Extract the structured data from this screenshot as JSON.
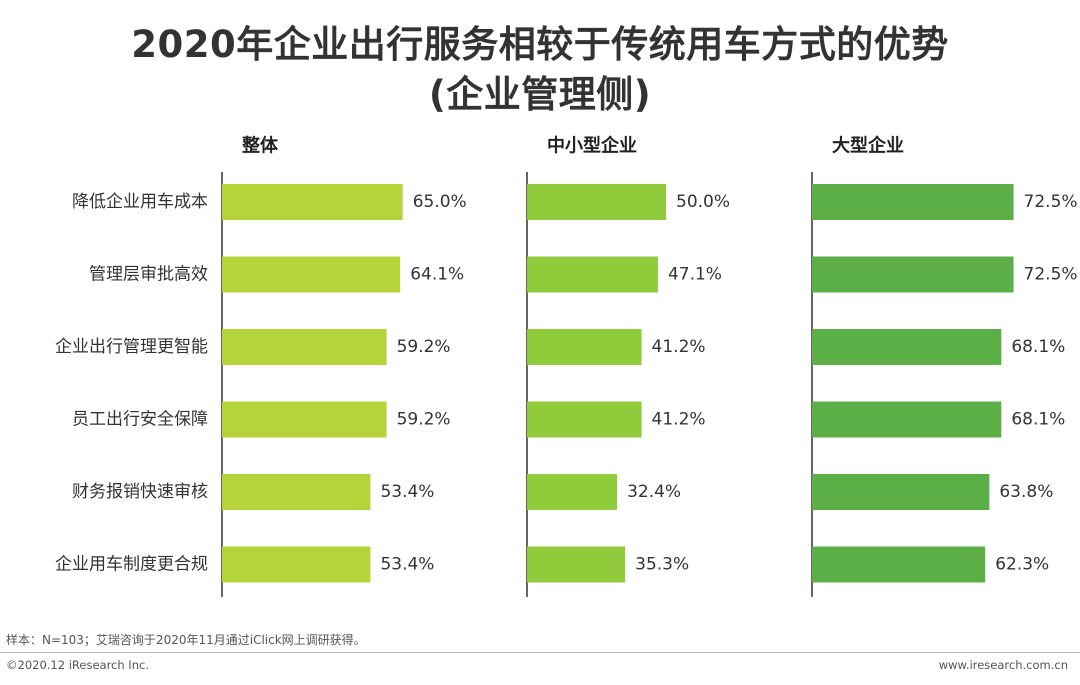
{
  "title": {
    "line1": "2020年企业出行服务相较于传统用车方式的优势",
    "line2": "(企业管理侧)"
  },
  "chart_data": {
    "type": "bar",
    "orientation": "horizontal",
    "categories": [
      "降低企业用车成本",
      "管理层审批高效",
      "企业出行管理更智能",
      "员工出行安全保障",
      "财务报销快速审核",
      "企业用车制度更合规"
    ],
    "value_suffix": "%",
    "panels": [
      {
        "name": "整体",
        "color": "#b5d43a",
        "values": [
          65.0,
          64.1,
          59.2,
          59.2,
          53.4,
          53.4
        ]
      },
      {
        "name": "中小型企业",
        "color": "#8fcb3b",
        "values": [
          50.0,
          47.1,
          41.2,
          41.2,
          32.4,
          35.3
        ]
      },
      {
        "name": "大型企业",
        "color": "#5cae47",
        "values": [
          72.5,
          72.5,
          68.1,
          68.1,
          63.8,
          62.3
        ]
      }
    ]
  },
  "note": "样本：N=103；艾瑞咨询于2020年11月通过iClick网上调研获得。",
  "footer": {
    "left": "©2020.12 iResearch Inc.",
    "right": "www.iresearch.com.cn"
  }
}
